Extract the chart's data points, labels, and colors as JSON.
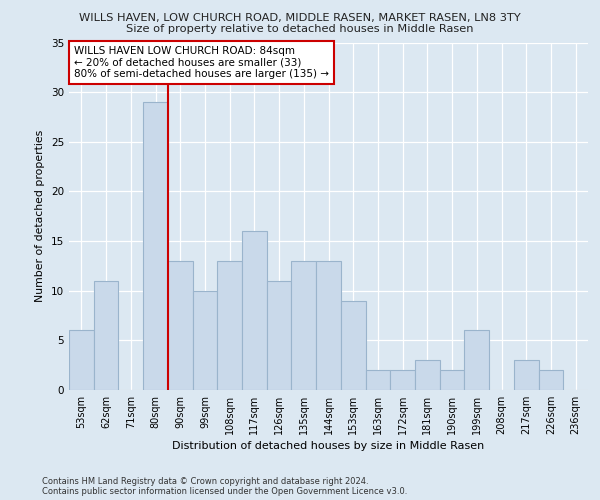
{
  "title_line1": "WILLS HAVEN, LOW CHURCH ROAD, MIDDLE RASEN, MARKET RASEN, LN8 3TY",
  "title_line2": "Size of property relative to detached houses in Middle Rasen",
  "xlabel": "Distribution of detached houses by size in Middle Rasen",
  "ylabel": "Number of detached properties",
  "bar_labels": [
    "53sqm",
    "62sqm",
    "71sqm",
    "80sqm",
    "90sqm",
    "99sqm",
    "108sqm",
    "117sqm",
    "126sqm",
    "135sqm",
    "144sqm",
    "153sqm",
    "163sqm",
    "172sqm",
    "181sqm",
    "190sqm",
    "199sqm",
    "208sqm",
    "217sqm",
    "226sqm",
    "236sqm"
  ],
  "bar_values": [
    6,
    11,
    0,
    29,
    13,
    10,
    13,
    16,
    11,
    13,
    13,
    9,
    2,
    2,
    3,
    2,
    6,
    0,
    3,
    2,
    0
  ],
  "bar_color": "#c9d9ea",
  "bar_edge_color": "#9ab4cc",
  "vline_color": "#cc0000",
  "annotation_text": "WILLS HAVEN LOW CHURCH ROAD: 84sqm\n← 20% of detached houses are smaller (33)\n80% of semi-detached houses are larger (135) →",
  "annotation_box_color": "#ffffff",
  "annotation_box_edge": "#cc0000",
  "ylim": [
    0,
    35
  ],
  "yticks": [
    0,
    5,
    10,
    15,
    20,
    25,
    30,
    35
  ],
  "footer_line1": "Contains HM Land Registry data © Crown copyright and database right 2024.",
  "footer_line2": "Contains public sector information licensed under the Open Government Licence v3.0.",
  "bg_color": "#dce8f2",
  "plot_bg_color": "#dce8f2",
  "grid_color": "#ffffff"
}
